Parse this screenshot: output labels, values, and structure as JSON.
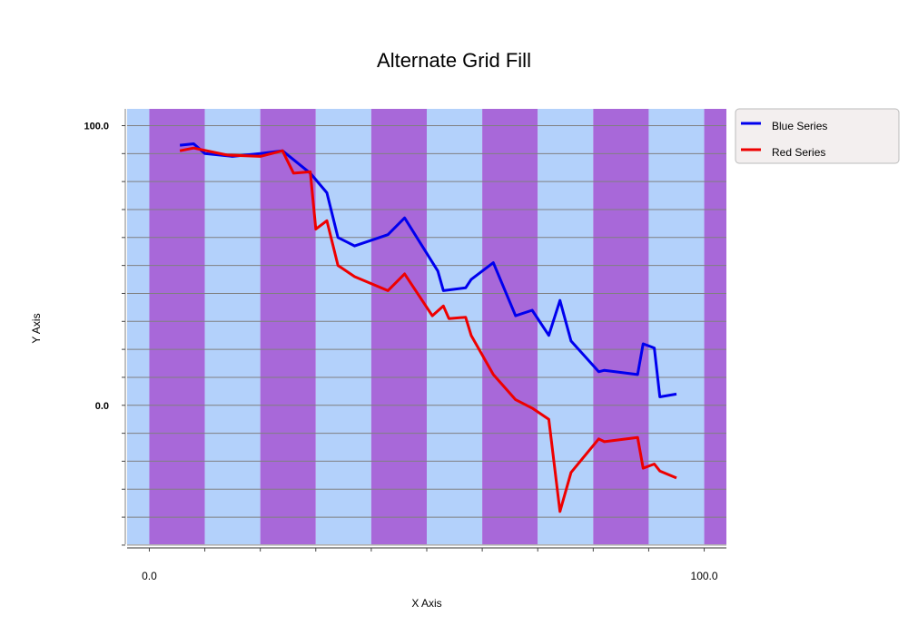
{
  "chart_data": {
    "type": "line",
    "title": "Alternate Grid Fill",
    "xlabel": "X Axis",
    "ylabel": "Y Axis",
    "xlim": [
      -4,
      104
    ],
    "ylim": [
      -51,
      106
    ],
    "x_ticks_labeled": [
      {
        "value": 0,
        "label": "0.0"
      },
      {
        "value": 100,
        "label": "100.0"
      }
    ],
    "y_ticks_labeled": [
      {
        "value": 0,
        "label": "0.0"
      },
      {
        "value": 100,
        "label": "100.0"
      }
    ],
    "grid": true,
    "grid_fill": {
      "color_a": "#b3d1fb",
      "color_b": "#a868d9",
      "band_width_x": 10
    },
    "legend": {
      "placement": "right"
    },
    "series": [
      {
        "name": "Blue Series",
        "color": "#0000ee",
        "points": [
          [
            5.5,
            93
          ],
          [
            8,
            93.5
          ],
          [
            10,
            90
          ],
          [
            15,
            89
          ],
          [
            20,
            90
          ],
          [
            24,
            91
          ],
          [
            29,
            83
          ],
          [
            32,
            76
          ],
          [
            34,
            60
          ],
          [
            37,
            57
          ],
          [
            43,
            61
          ],
          [
            46,
            67
          ],
          [
            52,
            48
          ],
          [
            53,
            41
          ],
          [
            57,
            42
          ],
          [
            58,
            45
          ],
          [
            62,
            51
          ],
          [
            66,
            32
          ],
          [
            69,
            34
          ],
          [
            72,
            25
          ],
          [
            74,
            37.5
          ],
          [
            76,
            23
          ],
          [
            81,
            12
          ],
          [
            82,
            12.5
          ],
          [
            88,
            11
          ],
          [
            89,
            22
          ],
          [
            91,
            20.5
          ],
          [
            92,
            3
          ],
          [
            95,
            4
          ]
        ]
      },
      {
        "name": "Red Series",
        "color": "#ee0000",
        "points": [
          [
            5.5,
            91
          ],
          [
            8,
            92
          ],
          [
            14,
            89.5
          ],
          [
            20,
            89
          ],
          [
            24,
            91
          ],
          [
            26,
            83
          ],
          [
            29,
            83.5
          ],
          [
            30,
            63
          ],
          [
            32,
            66
          ],
          [
            34,
            50
          ],
          [
            37,
            46
          ],
          [
            43,
            41
          ],
          [
            46,
            47
          ],
          [
            51,
            32
          ],
          [
            53,
            35.5
          ],
          [
            54,
            31
          ],
          [
            57,
            31.5
          ],
          [
            58,
            25
          ],
          [
            62,
            11
          ],
          [
            66,
            2
          ],
          [
            69,
            -1
          ],
          [
            72,
            -5
          ],
          [
            74,
            -38
          ],
          [
            76,
            -24
          ],
          [
            81,
            -12
          ],
          [
            82,
            -13
          ],
          [
            88,
            -11.5
          ],
          [
            89,
            -22.5
          ],
          [
            91,
            -21
          ],
          [
            92,
            -23.5
          ],
          [
            95,
            -26
          ]
        ]
      }
    ]
  }
}
